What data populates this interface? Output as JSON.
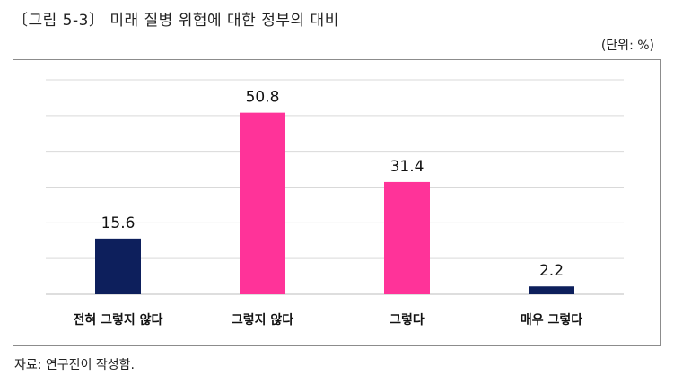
{
  "figure": {
    "title": "〔그림 5-3〕 미래 질병 위험에 대한 정부의 대비",
    "unit": "(단위: %)",
    "source": "자료: 연구진이 작성함."
  },
  "chart_data": {
    "type": "bar",
    "categories": [
      "전혀 그렇지 않다",
      "그렇지 않다",
      "그렇다",
      "매우 그렇다"
    ],
    "values": [
      15.6,
      50.8,
      31.4,
      2.2
    ],
    "value_labels": [
      "15.6",
      "50.8",
      "31.4",
      "2.2"
    ],
    "colors": [
      "#0d1f5c",
      "#ff3399",
      "#ff3399",
      "#0d1f5c"
    ],
    "ylim": [
      0,
      60
    ],
    "grid": true,
    "legend": "none"
  }
}
